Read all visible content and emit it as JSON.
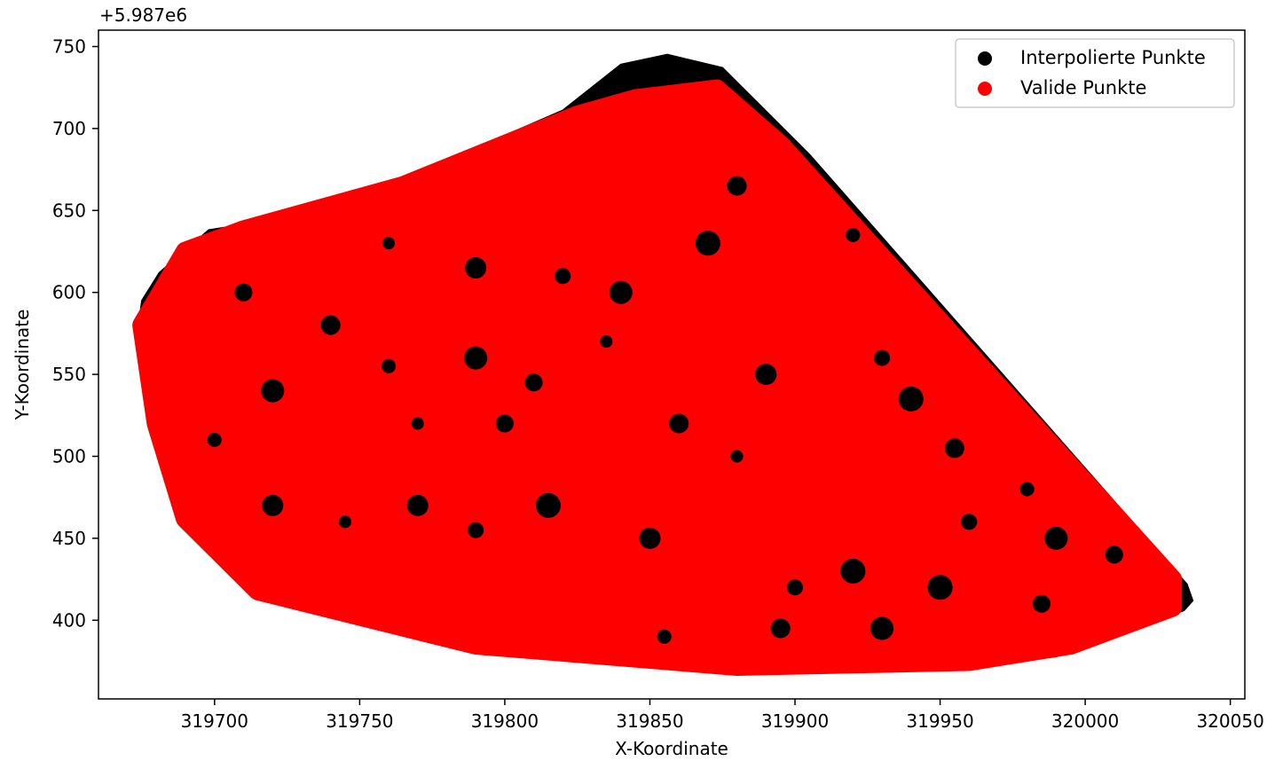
{
  "chart_data": {
    "type": "scatter",
    "title": "",
    "xlabel": "X-Koordinate",
    "ylabel": "Y-Koordinate",
    "y_offset_label": "+5.987e6",
    "y_offset": 5987000,
    "xlim": [
      319660,
      320055
    ],
    "ylim": [
      5987352,
      5987760
    ],
    "x_ticks": [
      319700,
      319750,
      319800,
      319850,
      319900,
      319950,
      320000,
      320050
    ],
    "x_tick_labels": [
      "319700",
      "319750",
      "319800",
      "319850",
      "319900",
      "319950",
      "320000",
      "320050"
    ],
    "y_ticks": [
      400,
      450,
      500,
      550,
      600,
      650,
      700,
      750
    ],
    "y_tick_labels": [
      "400",
      "450",
      "500",
      "550",
      "600",
      "650",
      "700",
      "750"
    ],
    "grid": false,
    "legend_position": "top-right",
    "series": [
      {
        "name": "Interpolierte Punkte",
        "color": "#000000",
        "kind": "dense filled point cloud (convex hull)",
        "hull_outline": [
          [
            319675,
            5987595
          ],
          [
            319681,
            5987612
          ],
          [
            319698,
            5987638
          ],
          [
            319709,
            5987641
          ],
          [
            319760,
            5987665
          ],
          [
            319820,
            5987711
          ],
          [
            319840,
            5987739
          ],
          [
            319856,
            5987745
          ],
          [
            319875,
            5987737
          ],
          [
            319905,
            5987684
          ],
          [
            320035,
            5987422
          ],
          [
            320037,
            5987412
          ],
          [
            320034,
            5987406
          ],
          [
            319990,
            5987378
          ],
          [
            319955,
            5987370
          ],
          [
            319880,
            5987370
          ],
          [
            319760,
            5987400
          ],
          [
            319712,
            5987417
          ],
          [
            319688,
            5987462
          ],
          [
            319680,
            5987510
          ],
          [
            319673,
            5987570
          ]
        ]
      },
      {
        "name": "Valide Punkte",
        "color": "#ff0000",
        "kind": "overlapping large markers covering most of the hull",
        "coverage_outline": [
          [
            319675,
            5987580
          ],
          [
            319690,
            5987625
          ],
          [
            319710,
            5987638
          ],
          [
            319765,
            5987665
          ],
          [
            319825,
            5987708
          ],
          [
            319845,
            5987718
          ],
          [
            319873,
            5987724
          ],
          [
            319895,
            5987690
          ],
          [
            320030,
            5987425
          ],
          [
            320030,
            5987408
          ],
          [
            319995,
            5987385
          ],
          [
            319960,
            5987375
          ],
          [
            319880,
            5987372
          ],
          [
            319790,
            5987385
          ],
          [
            319715,
            5987418
          ],
          [
            319690,
            5987462
          ],
          [
            319680,
            5987520
          ]
        ],
        "gaps": [
          [
            319745,
            5987460
          ],
          [
            319770,
            5987470
          ],
          [
            319790,
            5987455
          ],
          [
            319815,
            5987470
          ],
          [
            319740,
            5987580
          ],
          [
            319760,
            5987555
          ],
          [
            319790,
            5987560
          ],
          [
            319810,
            5987545
          ],
          [
            319835,
            5987570
          ],
          [
            319890,
            5987550
          ],
          [
            319930,
            5987560
          ],
          [
            319940,
            5987535
          ],
          [
            319955,
            5987505
          ],
          [
            319980,
            5987480
          ],
          [
            319990,
            5987450
          ],
          [
            320010,
            5987440
          ],
          [
            319880,
            5987500
          ],
          [
            319850,
            5987450
          ],
          [
            319900,
            5987420
          ],
          [
            319920,
            5987430
          ],
          [
            319860,
            5987520
          ],
          [
            319700,
            5987510
          ],
          [
            319720,
            5987540
          ],
          [
            319710,
            5987600
          ],
          [
            319760,
            5987630
          ],
          [
            319790,
            5987615
          ],
          [
            319820,
            5987610
          ],
          [
            319870,
            5987630
          ],
          [
            319880,
            5987665
          ],
          [
            319920,
            5987635
          ],
          [
            319840,
            5987600
          ],
          [
            319800,
            5987520
          ],
          [
            319770,
            5987520
          ],
          [
            319720,
            5987470
          ],
          [
            319960,
            5987460
          ],
          [
            319950,
            5987420
          ],
          [
            319895,
            5987395
          ],
          [
            319855,
            5987390
          ],
          [
            319930,
            5987395
          ],
          [
            319985,
            5987410
          ]
        ]
      }
    ]
  }
}
